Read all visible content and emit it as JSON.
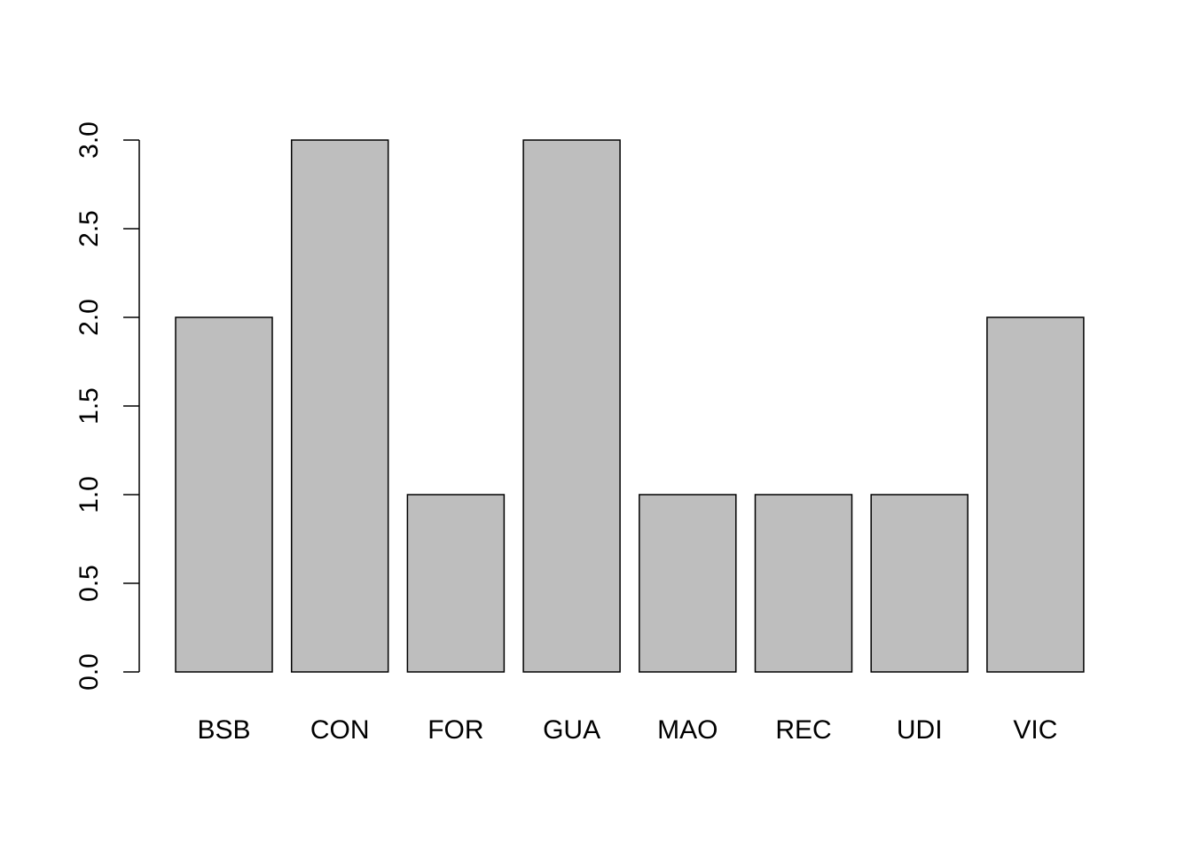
{
  "chart_data": {
    "type": "bar",
    "title": "",
    "xlabel": "",
    "ylabel": "",
    "categories": [
      "BSB",
      "CON",
      "FOR",
      "GUA",
      "MAO",
      "REC",
      "UDI",
      "VIC"
    ],
    "values": [
      2,
      3,
      1,
      3,
      1,
      1,
      1,
      2
    ],
    "ylim": [
      0,
      3
    ],
    "yticks": [
      "0.0",
      "0.5",
      "1.0",
      "1.5",
      "2.0",
      "2.5",
      "3.0"
    ],
    "grid": false,
    "legend": "none",
    "colors": {
      "bar_fill": "#bebebe",
      "bar_border": "#000000",
      "background": "#ffffff"
    }
  }
}
